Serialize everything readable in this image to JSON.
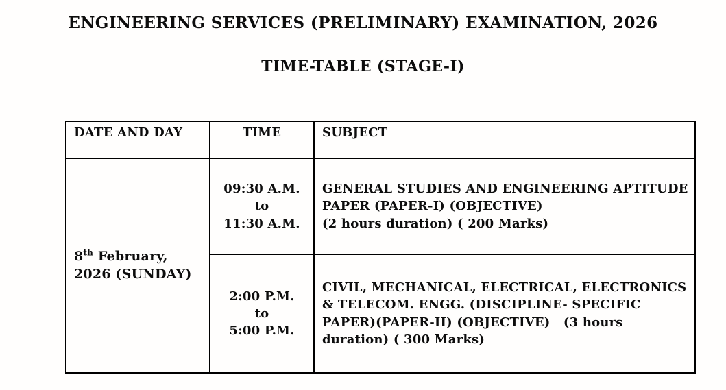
{
  "page": {
    "title": "ENGINEERING SERVICES (PRELIMINARY) EXAMINATION, 2026",
    "subtitle": "TIME-TABLE (STAGE-I)"
  },
  "timetable": {
    "headers": {
      "date_and_day": "DATE AND DAY",
      "time": "TIME",
      "subject": "SUBJECT"
    },
    "exam_date": {
      "day": "8",
      "ordinal_suffix": "th",
      "month": " February,",
      "year_and_weekday": "2026 (SUNDAY)"
    },
    "sessions": [
      {
        "time": "09:30 A.M.\nto\n11:30 A.M.",
        "subject": "GENERAL STUDIES AND ENGINEERING APTITUDE\nPAPER (PAPER-I) (OBJECTIVE)\n(2 hours duration) ( 200 Marks)"
      },
      {
        "time": "2:00 P.M.\nto\n5:00 P.M.",
        "subject": "CIVIL, MECHANICAL, ELECTRICAL, ELECTRONICS\n& TELECOM. ENGG. (DISCIPLINE- SPECIFIC\nPAPER)(PAPER-II) (OBJECTIVE)   (3 hours\nduration) ( 300 Marks)"
      }
    ]
  },
  "colors": {
    "text": "#0d0d0d",
    "border": "#000000",
    "background": "#fffefd"
  }
}
